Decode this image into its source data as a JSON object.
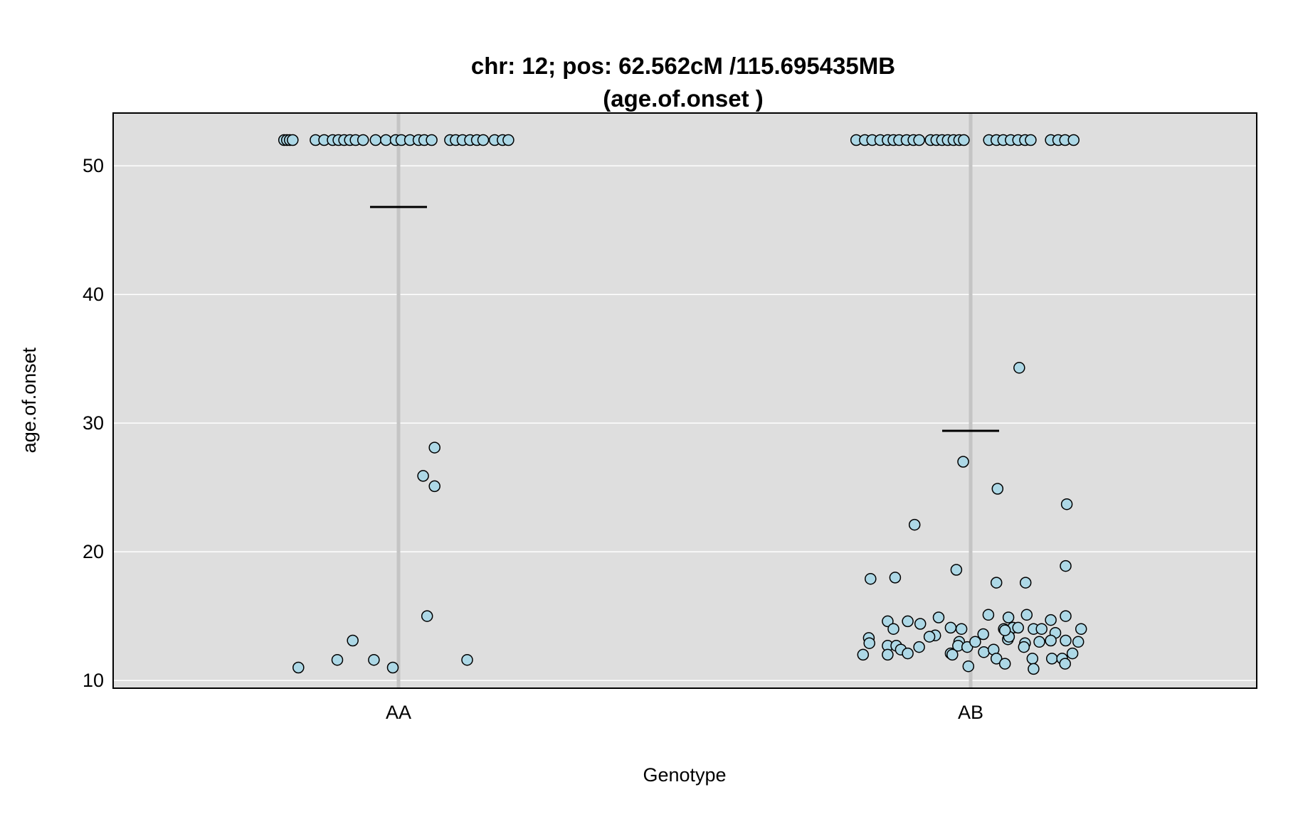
{
  "chart_data": {
    "type": "scatter",
    "title": "chr: 12; pos: 62.562cM /115.695435MB",
    "subtitle": "(age.of.onset )",
    "xlabel": "Genotype",
    "ylabel": "age.of.onset",
    "categories": [
      "AA",
      "AB"
    ],
    "ylim": [
      9.4,
      54.1
    ],
    "yticks": [
      10,
      20,
      30,
      40,
      50
    ],
    "grid": true,
    "colors": {
      "panel_bg": "#dedede",
      "grid": "#ffffff",
      "category_line": "#c4c4c4",
      "point_fill": "#add8e6",
      "point_stroke": "#000000",
      "mean_line": "#000000"
    },
    "series": [
      {
        "category": "AA",
        "mean": 46.8,
        "points": [
          [
            -0.2,
            52
          ],
          [
            -0.195,
            52
          ],
          [
            -0.19,
            52
          ],
          [
            -0.185,
            52
          ],
          [
            -0.145,
            52
          ],
          [
            -0.13,
            52
          ],
          [
            -0.115,
            52
          ],
          [
            -0.105,
            52
          ],
          [
            -0.095,
            52
          ],
          [
            -0.085,
            52
          ],
          [
            -0.075,
            52
          ],
          [
            -0.062,
            52
          ],
          [
            -0.04,
            52
          ],
          [
            -0.022,
            52
          ],
          [
            -0.005,
            52
          ],
          [
            0.005,
            52
          ],
          [
            0.02,
            52
          ],
          [
            0.035,
            52
          ],
          [
            0.045,
            52
          ],
          [
            0.058,
            52
          ],
          [
            0.09,
            52
          ],
          [
            0.1,
            52
          ],
          [
            0.112,
            52
          ],
          [
            0.125,
            52
          ],
          [
            0.137,
            52
          ],
          [
            0.148,
            52
          ],
          [
            0.168,
            52
          ],
          [
            0.182,
            52
          ],
          [
            0.192,
            52
          ],
          [
            0.063,
            28.1
          ],
          [
            0.043,
            25.9
          ],
          [
            0.063,
            25.1
          ],
          [
            0.05,
            15.0
          ],
          [
            -0.08,
            13.1
          ],
          [
            -0.107,
            11.6
          ],
          [
            -0.043,
            11.6
          ],
          [
            0.12,
            11.6
          ],
          [
            -0.175,
            11.0
          ],
          [
            -0.01,
            11.0
          ]
        ]
      },
      {
        "category": "AB",
        "mean": 29.4,
        "points": [
          [
            -0.2,
            52
          ],
          [
            -0.185,
            52
          ],
          [
            -0.172,
            52
          ],
          [
            -0.158,
            52
          ],
          [
            -0.145,
            52
          ],
          [
            -0.135,
            52
          ],
          [
            -0.125,
            52
          ],
          [
            -0.112,
            52
          ],
          [
            -0.1,
            52
          ],
          [
            -0.09,
            52
          ],
          [
            -0.07,
            52
          ],
          [
            -0.06,
            52
          ],
          [
            -0.05,
            52
          ],
          [
            -0.04,
            52
          ],
          [
            -0.03,
            52
          ],
          [
            -0.02,
            52
          ],
          [
            -0.012,
            52
          ],
          [
            0.032,
            52
          ],
          [
            0.045,
            52
          ],
          [
            0.057,
            52
          ],
          [
            0.07,
            52
          ],
          [
            0.083,
            52
          ],
          [
            0.095,
            52
          ],
          [
            0.105,
            52
          ],
          [
            0.14,
            52
          ],
          [
            0.153,
            52
          ],
          [
            0.165,
            52
          ],
          [
            0.18,
            52
          ],
          [
            0.085,
            34.3
          ],
          [
            -0.013,
            27.0
          ],
          [
            0.047,
            24.9
          ],
          [
            0.168,
            23.7
          ],
          [
            -0.098,
            22.1
          ],
          [
            -0.025,
            18.6
          ],
          [
            0.166,
            18.9
          ],
          [
            -0.175,
            17.9
          ],
          [
            -0.132,
            18.0
          ],
          [
            0.045,
            17.6
          ],
          [
            0.096,
            17.6
          ],
          [
            0.031,
            15.1
          ],
          [
            0.066,
            14.9
          ],
          [
            0.098,
            15.1
          ],
          [
            0.166,
            15.0
          ],
          [
            -0.056,
            14.9
          ],
          [
            -0.145,
            14.6
          ],
          [
            -0.11,
            14.6
          ],
          [
            -0.088,
            14.4
          ],
          [
            0.14,
            14.7
          ],
          [
            -0.135,
            14.0
          ],
          [
            -0.035,
            14.1
          ],
          [
            -0.016,
            14.0
          ],
          [
            0.058,
            14.0
          ],
          [
            0.074,
            14.1
          ],
          [
            0.11,
            14.0
          ],
          [
            0.124,
            14.0
          ],
          [
            0.148,
            13.7
          ],
          [
            0.193,
            14.0
          ],
          [
            -0.062,
            13.5
          ],
          [
            -0.072,
            13.4
          ],
          [
            0.022,
            13.6
          ],
          [
            0.065,
            13.2
          ],
          [
            0.067,
            13.4
          ],
          [
            -0.178,
            13.3
          ],
          [
            -0.177,
            12.9
          ],
          [
            -0.145,
            12.7
          ],
          [
            -0.13,
            12.7
          ],
          [
            -0.122,
            12.4
          ],
          [
            -0.09,
            12.6
          ],
          [
            -0.02,
            13.0
          ],
          [
            -0.022,
            12.7
          ],
          [
            -0.006,
            12.6
          ],
          [
            0.008,
            13.0
          ],
          [
            0.095,
            12.9
          ],
          [
            0.093,
            12.6
          ],
          [
            0.12,
            13.0
          ],
          [
            0.14,
            13.1
          ],
          [
            0.166,
            13.1
          ],
          [
            0.188,
            13.0
          ],
          [
            -0.188,
            12.0
          ],
          [
            -0.145,
            12.0
          ],
          [
            -0.11,
            12.1
          ],
          [
            -0.035,
            12.1
          ],
          [
            -0.032,
            12.0
          ],
          [
            0.023,
            12.2
          ],
          [
            0.04,
            12.4
          ],
          [
            0.06,
            13.9
          ],
          [
            0.083,
            14.1
          ],
          [
            0.178,
            12.1
          ],
          [
            0.045,
            11.7
          ],
          [
            0.108,
            11.7
          ],
          [
            0.142,
            11.7
          ],
          [
            0.16,
            11.7
          ],
          [
            -0.004,
            11.1
          ],
          [
            0.06,
            11.3
          ],
          [
            0.11,
            10.9
          ],
          [
            0.165,
            11.3
          ]
        ]
      }
    ]
  }
}
